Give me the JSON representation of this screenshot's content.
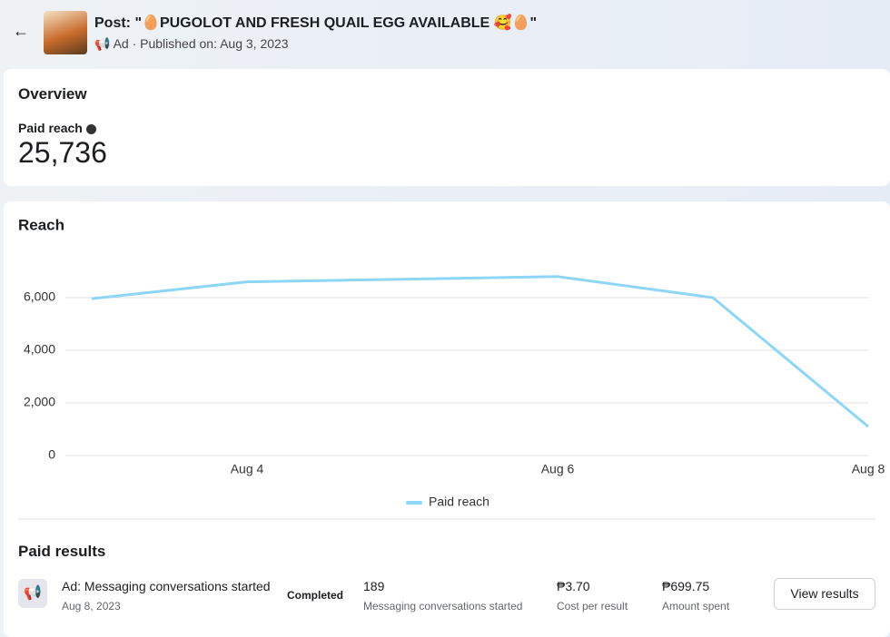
{
  "header": {
    "title": "Post: \"🥚PUGOLOT AND FRESH QUAIL EGG AVAILABLE 🥰🥚\"",
    "subtitle": "Ad · Published on: Aug 3, 2023"
  },
  "overview": {
    "title": "Overview",
    "metric_label": "Paid reach",
    "metric_value": "25,736"
  },
  "chart_data": {
    "type": "line",
    "title": "Reach",
    "categories": [
      null,
      "Aug 4",
      null,
      "Aug 6",
      null,
      "Aug 8"
    ],
    "series": [
      {
        "name": "Paid reach",
        "color": "#8dd6f7",
        "values": [
          5960,
          6600,
          6700,
          6800,
          6000,
          1100
        ]
      }
    ],
    "ylim": [
      0,
      8000
    ],
    "yticks": [
      0,
      {
        "value": 2000,
        "label": "2,000"
      },
      {
        "value": 4000,
        "label": "4,000"
      },
      {
        "value": 6000,
        "label": "6,000"
      }
    ],
    "grid": true,
    "legend": "bottom"
  },
  "paid_results": {
    "title": "Paid results",
    "row": {
      "name": "Ad: Messaging conversations started",
      "date": "Aug 8, 2023",
      "status": "Completed",
      "results": "189",
      "results_label": "Messaging conversations started",
      "cost": "₱3.70",
      "cost_label": "Cost per result",
      "spent": "₱699.75",
      "spent_label": "Amount spent",
      "button": "View results"
    }
  }
}
